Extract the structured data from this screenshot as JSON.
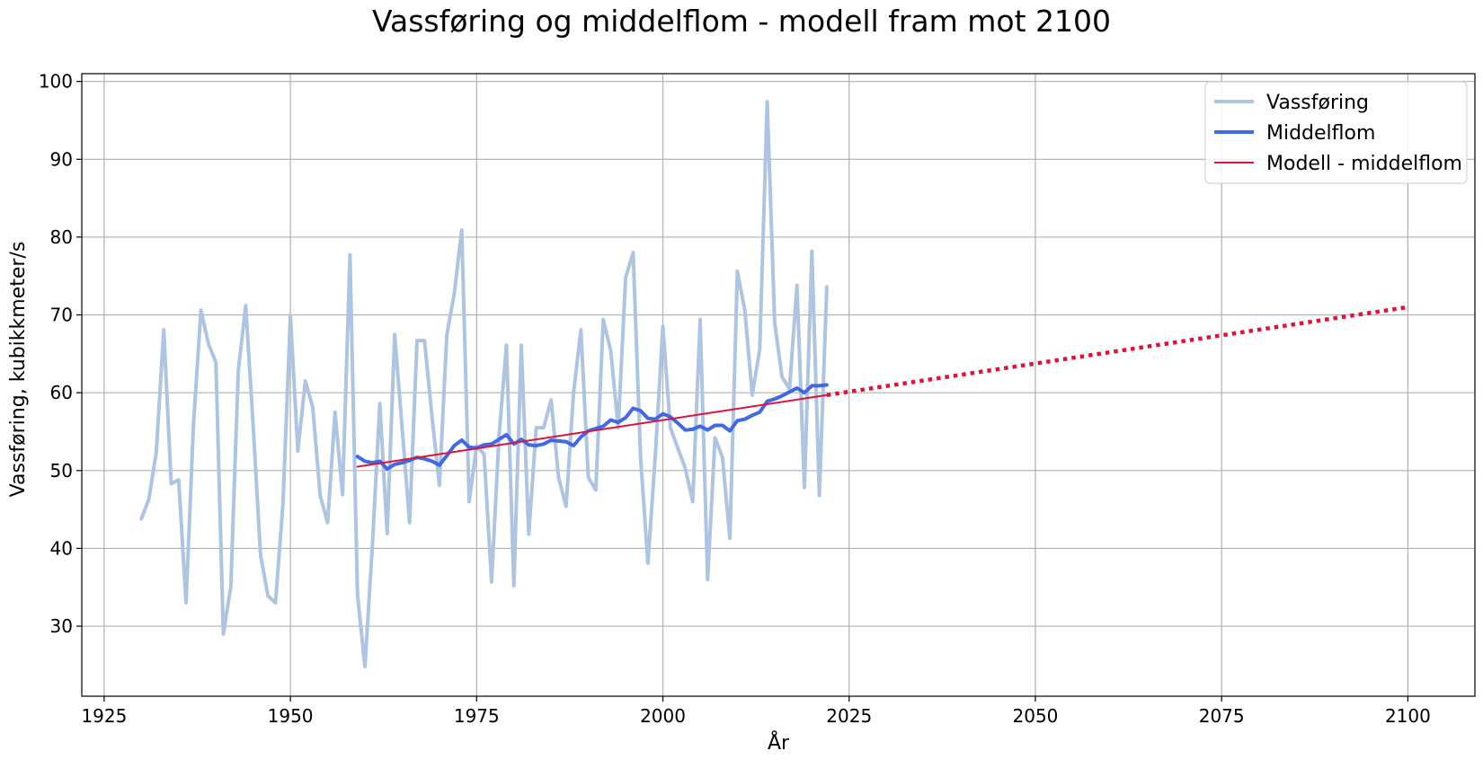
{
  "chart_data": {
    "type": "line",
    "title": "Vassføring og middelflom - modell fram mot 2100",
    "xlabel": "År",
    "ylabel": "Vassføring, kubikkmeter/s",
    "xlim": [
      1922,
      2109
    ],
    "ylim": [
      21,
      101
    ],
    "xticks": [
      1925,
      1950,
      1975,
      2000,
      2025,
      2050,
      2075,
      2100
    ],
    "yticks": [
      30,
      40,
      50,
      60,
      70,
      80,
      90,
      100
    ],
    "grid": true,
    "legend_position": "top-right",
    "series": [
      {
        "name": "Vassføring",
        "color": "#aec4e0",
        "style": "solid",
        "x": [
          1930,
          1931,
          1932,
          1933,
          1934,
          1935,
          1936,
          1937,
          1938,
          1939,
          1940,
          1941,
          1942,
          1943,
          1944,
          1945,
          1946,
          1947,
          1948,
          1949,
          1950,
          1951,
          1952,
          1953,
          1954,
          1955,
          1956,
          1957,
          1958,
          1959,
          1960,
          1961,
          1962,
          1963,
          1964,
          1965,
          1966,
          1967,
          1968,
          1969,
          1970,
          1971,
          1972,
          1973,
          1974,
          1975,
          1976,
          1977,
          1978,
          1979,
          1980,
          1981,
          1982,
          1983,
          1984,
          1985,
          1986,
          1987,
          1988,
          1989,
          1990,
          1991,
          1992,
          1993,
          1994,
          1995,
          1996,
          1997,
          1998,
          1999,
          2000,
          2001,
          2002,
          2003,
          2004,
          2005,
          2006,
          2007,
          2008,
          2009,
          2010,
          2011,
          2012,
          2013,
          2014,
          2015,
          2016,
          2017,
          2018,
          2019,
          2020,
          2021,
          2022
        ],
        "values": [
          43.8,
          46.3,
          52.4,
          68.1,
          48.3,
          48.8,
          33,
          56,
          70.6,
          66.3,
          63.9,
          29,
          35.1,
          62.8,
          71.2,
          55.9,
          39.1,
          33.9,
          33,
          45.7,
          69.9,
          52.5,
          61.5,
          58.1,
          46.8,
          43.3,
          57.5,
          46.9,
          77.7,
          34.2,
          24.8,
          40.3,
          58.6,
          41.9,
          67.5,
          55.5,
          43.3,
          66.7,
          66.7,
          57,
          48.1,
          67.4,
          72.7,
          80.9,
          46,
          53.2,
          52.1,
          35.7,
          54.4,
          66.1,
          35.2,
          66.1,
          41.8,
          55.5,
          55.5,
          59.1,
          49.1,
          45.4,
          59.9,
          68.1,
          49.1,
          47.5,
          69.4,
          65.4,
          55.5,
          74.8,
          78,
          51.7,
          38.1,
          52.1,
          68.5,
          55.5,
          52.9,
          50.3,
          46,
          69.4,
          36,
          54.2,
          51.7,
          41.3,
          75.6,
          70.6,
          59.7,
          65.6,
          97.4,
          69,
          62,
          60.5,
          73.8,
          47.8,
          78.2,
          46.8,
          73.6
        ]
      },
      {
        "name": "Middelflom",
        "color": "#4169e1",
        "style": "solid",
        "x": [
          1959,
          1960,
          1961,
          1962,
          1963,
          1964,
          1965,
          1966,
          1967,
          1968,
          1969,
          1970,
          1971,
          1972,
          1973,
          1974,
          1975,
          1976,
          1977,
          1978,
          1979,
          1980,
          1981,
          1982,
          1983,
          1984,
          1985,
          1986,
          1987,
          1988,
          1989,
          1990,
          1991,
          1992,
          1993,
          1994,
          1995,
          1996,
          1997,
          1998,
          1999,
          2000,
          2001,
          2002,
          2003,
          2004,
          2005,
          2006,
          2007,
          2008,
          2009,
          2010,
          2011,
          2012,
          2013,
          2014,
          2015,
          2016,
          2017,
          2018,
          2019,
          2020,
          2021,
          2022
        ],
        "values": [
          51.8,
          51.2,
          51,
          51.2,
          50.2,
          50.8,
          51,
          51.3,
          51.7,
          51.5,
          51.2,
          50.7,
          51.9,
          53.2,
          53.9,
          53,
          52.9,
          53.3,
          53.4,
          54,
          54.6,
          53.4,
          54,
          53.3,
          53.2,
          53.4,
          53.9,
          53.8,
          53.7,
          53.2,
          54.3,
          55.1,
          55.4,
          55.7,
          56.5,
          56.2,
          56.8,
          58,
          57.7,
          56.7,
          56.6,
          57.3,
          56.9,
          56.1,
          55.2,
          55.3,
          55.7,
          55.2,
          55.8,
          55.8,
          55.1,
          56.4,
          56.6,
          57.1,
          57.5,
          58.9,
          59.2,
          59.6,
          60.1,
          60.6,
          60,
          60.9,
          60.9,
          61
        ]
      },
      {
        "name": "Modell - middelflom",
        "color": "#dc143c",
        "style": "solid",
        "x": [
          1959,
          2022
        ],
        "values": [
          50.5,
          59.7
        ]
      },
      {
        "name": "",
        "color": "#dc143c",
        "style": "dotted",
        "x": [
          2022,
          2100
        ],
        "values": [
          59.7,
          71.0
        ]
      }
    ]
  }
}
